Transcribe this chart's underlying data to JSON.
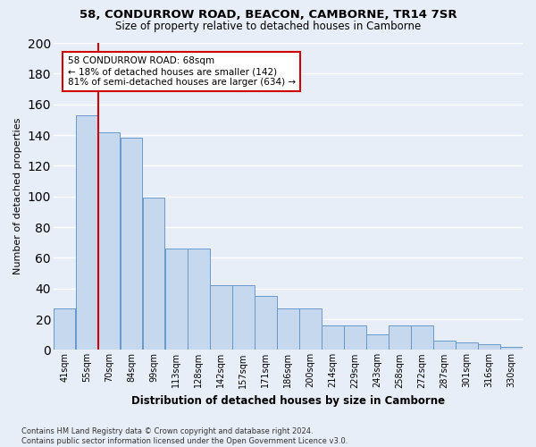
{
  "title": "58, CONDURROW ROAD, BEACON, CAMBORNE, TR14 7SR",
  "subtitle": "Size of property relative to detached houses in Camborne",
  "xlabel": "Distribution of detached houses by size in Camborne",
  "ylabel": "Number of detached properties",
  "categories": [
    "41sqm",
    "55sqm",
    "70sqm",
    "84sqm",
    "99sqm",
    "113sqm",
    "128sqm",
    "142sqm",
    "157sqm",
    "171sqm",
    "186sqm",
    "200sqm",
    "214sqm",
    "229sqm",
    "243sqm",
    "258sqm",
    "272sqm",
    "287sqm",
    "301sqm",
    "316sqm",
    "330sqm"
  ],
  "bar_heights": [
    27,
    153,
    142,
    138,
    99,
    66,
    66,
    42,
    42,
    35,
    27,
    27,
    16,
    16,
    10,
    16,
    16,
    6,
    5,
    4,
    2
  ],
  "bar_color": "#c5d8ee",
  "bar_edge_color": "#6699cc",
  "vline_color": "#cc0000",
  "annotation_line1": "58 CONDURROW ROAD: 68sqm",
  "annotation_line2": "← 18% of detached houses are smaller (142)",
  "annotation_line3": "81% of semi-detached houses are larger (634) →",
  "ylim": [
    0,
    200
  ],
  "yticks": [
    0,
    20,
    40,
    60,
    80,
    100,
    120,
    140,
    160,
    180,
    200
  ],
  "footer": "Contains HM Land Registry data © Crown copyright and database right 2024.\nContains public sector information licensed under the Open Government Licence v3.0.",
  "bg_color": "#e8eef8",
  "grid_color": "#ffffff"
}
